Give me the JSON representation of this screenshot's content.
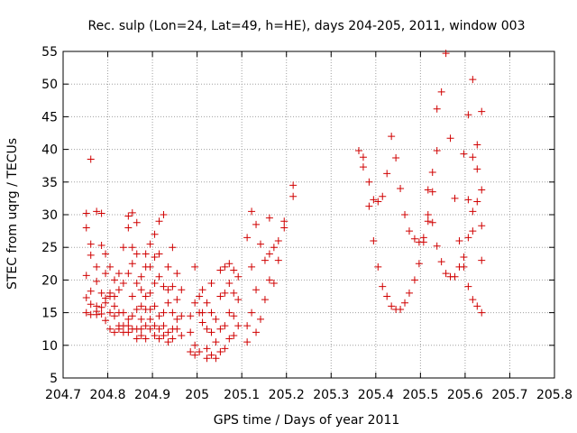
{
  "chart_data": {
    "type": "scatter",
    "title": "Rec. sulp (Lon=24, Lat=49, h=HE), days 204-205, 2011, window 003",
    "xlabel": "GPS time / Days of year 2011",
    "ylabel": "STEC from uqrg / TECUs",
    "xlim": [
      204.7,
      205.8
    ],
    "ylim": [
      5,
      55
    ],
    "xticks": [
      204.7,
      204.8,
      204.9,
      205.0,
      205.1,
      205.2,
      205.3,
      205.4,
      205.5,
      205.6,
      205.7,
      205.8
    ],
    "xtick_labels": [
      "204.7",
      "204.8",
      "204.9",
      "205",
      "205.1",
      "205.2",
      "205.3",
      "205.4",
      "205.5",
      "205.6",
      "205.7",
      "205.8"
    ],
    "yticks": [
      5,
      10,
      15,
      20,
      25,
      30,
      35,
      40,
      45,
      50,
      55
    ],
    "ytick_labels": [
      "5",
      "10",
      "15",
      "20",
      "25",
      "30",
      "35",
      "40",
      "45",
      "50",
      "55"
    ],
    "grid": true,
    "marker": "+",
    "colors": {
      "points": "#d00000",
      "grid": "#a0a0a0",
      "axes": "#000000"
    },
    "series": [
      {
        "points": [
          [
            204.752,
            30.2
          ],
          [
            204.752,
            28.0
          ],
          [
            204.752,
            20.7
          ],
          [
            204.752,
            17.3
          ],
          [
            204.752,
            15.0
          ],
          [
            204.762,
            38.5
          ],
          [
            204.762,
            25.5
          ],
          [
            204.762,
            23.8
          ],
          [
            204.762,
            18.3
          ],
          [
            204.762,
            16.3
          ],
          [
            204.762,
            14.7
          ],
          [
            204.775,
            30.5
          ],
          [
            204.775,
            22.0
          ],
          [
            204.775,
            19.8
          ],
          [
            204.775,
            16.0
          ],
          [
            204.775,
            15.2
          ],
          [
            204.775,
            14.7
          ],
          [
            204.786,
            30.2
          ],
          [
            204.786,
            25.3
          ],
          [
            204.786,
            18.0
          ],
          [
            204.786,
            15.8
          ],
          [
            204.786,
            14.8
          ],
          [
            204.795,
            24.0
          ],
          [
            204.795,
            21.0
          ],
          [
            204.795,
            17.2
          ],
          [
            204.795,
            16.5
          ],
          [
            204.795,
            13.8
          ],
          [
            204.805,
            22.0
          ],
          [
            204.805,
            18.0
          ],
          [
            204.805,
            17.5
          ],
          [
            204.805,
            15.0
          ],
          [
            204.805,
            12.5
          ],
          [
            204.815,
            20.0
          ],
          [
            204.815,
            17.5
          ],
          [
            204.815,
            16.0
          ],
          [
            204.815,
            14.5
          ],
          [
            204.815,
            12.0
          ],
          [
            204.825,
            21.0
          ],
          [
            204.825,
            18.5
          ],
          [
            204.825,
            15.0
          ],
          [
            204.825,
            13.0
          ],
          [
            204.825,
            12.5
          ],
          [
            204.835,
            25.0
          ],
          [
            204.835,
            19.5
          ],
          [
            204.835,
            15.0
          ],
          [
            204.835,
            13.0
          ],
          [
            204.835,
            12.0
          ],
          [
            204.846,
            29.8
          ],
          [
            204.846,
            28.0
          ],
          [
            204.846,
            21.0
          ],
          [
            204.846,
            14.0
          ],
          [
            204.846,
            13.0
          ],
          [
            204.846,
            12.0
          ],
          [
            204.855,
            30.3
          ],
          [
            204.855,
            25.0
          ],
          [
            204.855,
            22.5
          ],
          [
            204.855,
            17.5
          ],
          [
            204.855,
            14.5
          ],
          [
            204.855,
            12.5
          ],
          [
            204.865,
            28.8
          ],
          [
            204.865,
            24.0
          ],
          [
            204.865,
            19.5
          ],
          [
            204.865,
            15.5
          ],
          [
            204.865,
            12.5
          ],
          [
            204.865,
            11.0
          ],
          [
            204.875,
            20.5
          ],
          [
            204.875,
            18.5
          ],
          [
            204.875,
            16.0
          ],
          [
            204.875,
            14.0
          ],
          [
            204.875,
            12.5
          ],
          [
            204.875,
            11.5
          ],
          [
            204.885,
            24.0
          ],
          [
            204.885,
            22.0
          ],
          [
            204.885,
            17.5
          ],
          [
            204.885,
            15.5
          ],
          [
            204.885,
            13.0
          ],
          [
            204.885,
            11.0
          ],
          [
            204.895,
            25.5
          ],
          [
            204.895,
            22.0
          ],
          [
            204.895,
            18.0
          ],
          [
            204.895,
            15.5
          ],
          [
            204.895,
            14.0
          ],
          [
            204.895,
            12.5
          ],
          [
            204.905,
            27.0
          ],
          [
            204.905,
            23.5
          ],
          [
            204.905,
            19.5
          ],
          [
            204.905,
            16.0
          ],
          [
            204.905,
            13.0
          ],
          [
            204.905,
            11.5
          ],
          [
            204.915,
            29.0
          ],
          [
            204.915,
            24.0
          ],
          [
            204.915,
            20.5
          ],
          [
            204.915,
            14.5
          ],
          [
            204.915,
            12.5
          ],
          [
            204.915,
            11.0
          ],
          [
            204.925,
            30.0
          ],
          [
            204.925,
            19.0
          ],
          [
            204.925,
            15.0
          ],
          [
            204.925,
            13.0
          ],
          [
            204.925,
            11.5
          ],
          [
            204.935,
            22.0
          ],
          [
            204.935,
            18.5
          ],
          [
            204.935,
            16.5
          ],
          [
            204.935,
            12.0
          ],
          [
            204.935,
            10.5
          ],
          [
            204.945,
            25.0
          ],
          [
            204.945,
            19.0
          ],
          [
            204.945,
            15.0
          ],
          [
            204.945,
            12.5
          ],
          [
            204.945,
            11.0
          ],
          [
            204.955,
            21.0
          ],
          [
            204.955,
            17.0
          ],
          [
            204.955,
            14.0
          ],
          [
            204.955,
            12.5
          ],
          [
            204.965,
            18.5
          ],
          [
            204.965,
            14.5
          ],
          [
            204.965,
            11.5
          ],
          [
            204.985,
            14.5
          ],
          [
            204.985,
            12.0
          ],
          [
            204.985,
            9.0
          ],
          [
            204.995,
            22.0
          ],
          [
            204.995,
            16.5
          ],
          [
            204.995,
            10.0
          ],
          [
            204.995,
            8.5
          ],
          [
            205.005,
            17.5
          ],
          [
            205.005,
            15.0
          ],
          [
            205.005,
            9.0
          ],
          [
            205.012,
            18.5
          ],
          [
            205.012,
            15.0
          ],
          [
            205.012,
            13.5
          ],
          [
            205.022,
            16.5
          ],
          [
            205.022,
            12.5
          ],
          [
            205.022,
            9.5
          ],
          [
            205.022,
            8.0
          ],
          [
            205.032,
            19.5
          ],
          [
            205.032,
            15.0
          ],
          [
            205.032,
            12.0
          ],
          [
            205.032,
            8.5
          ],
          [
            205.042,
            14.0
          ],
          [
            205.042,
            10.5
          ],
          [
            205.042,
            8.0
          ],
          [
            205.052,
            21.5
          ],
          [
            205.052,
            17.5
          ],
          [
            205.052,
            12.5
          ],
          [
            205.052,
            9.0
          ],
          [
            205.062,
            22.0
          ],
          [
            205.062,
            18.0
          ],
          [
            205.062,
            13.0
          ],
          [
            205.062,
            9.5
          ],
          [
            205.072,
            22.5
          ],
          [
            205.072,
            19.5
          ],
          [
            205.072,
            15.0
          ],
          [
            205.072,
            11.0
          ],
          [
            205.082,
            21.5
          ],
          [
            205.082,
            18.0
          ],
          [
            205.082,
            14.5
          ],
          [
            205.082,
            11.5
          ],
          [
            205.092,
            20.5
          ],
          [
            205.092,
            17.0
          ],
          [
            205.092,
            13.0
          ],
          [
            205.112,
            26.5
          ],
          [
            205.112,
            13.0
          ],
          [
            205.112,
            10.5
          ],
          [
            205.122,
            30.5
          ],
          [
            205.122,
            22.0
          ],
          [
            205.122,
            15.0
          ],
          [
            205.132,
            28.5
          ],
          [
            205.132,
            18.5
          ],
          [
            205.132,
            12.0
          ],
          [
            205.142,
            25.5
          ],
          [
            205.142,
            14.0
          ],
          [
            205.152,
            23.0
          ],
          [
            205.152,
            17.0
          ],
          [
            205.162,
            29.5
          ],
          [
            205.162,
            24.0
          ],
          [
            205.162,
            20.0
          ],
          [
            205.172,
            25.0
          ],
          [
            205.172,
            19.5
          ],
          [
            205.182,
            26.0
          ],
          [
            205.182,
            23.0
          ],
          [
            205.195,
            29.0
          ],
          [
            205.195,
            28.0
          ],
          [
            205.215,
            34.5
          ],
          [
            205.215,
            32.8
          ],
          [
            205.362,
            39.8
          ],
          [
            205.372,
            38.8
          ],
          [
            205.372,
            37.3
          ],
          [
            205.385,
            35.0
          ],
          [
            205.385,
            31.3
          ],
          [
            205.395,
            32.3
          ],
          [
            205.395,
            26.0
          ],
          [
            205.405,
            32.0
          ],
          [
            205.405,
            22.0
          ],
          [
            205.415,
            32.8
          ],
          [
            205.415,
            19.0
          ],
          [
            205.425,
            36.3
          ],
          [
            205.425,
            17.5
          ],
          [
            205.435,
            42.0
          ],
          [
            205.435,
            16.0
          ],
          [
            205.445,
            38.7
          ],
          [
            205.445,
            15.5
          ],
          [
            205.455,
            34.0
          ],
          [
            205.455,
            15.5
          ],
          [
            205.465,
            30.0
          ],
          [
            205.465,
            16.5
          ],
          [
            205.475,
            27.5
          ],
          [
            205.475,
            18.0
          ],
          [
            205.487,
            26.3
          ],
          [
            205.487,
            20.0
          ],
          [
            205.497,
            25.8
          ],
          [
            205.497,
            22.5
          ],
          [
            205.507,
            26.5
          ],
          [
            205.507,
            25.8
          ],
          [
            205.517,
            33.8
          ],
          [
            205.517,
            30.0
          ],
          [
            205.517,
            29.0
          ],
          [
            205.527,
            36.5
          ],
          [
            205.527,
            33.5
          ],
          [
            205.527,
            28.8
          ],
          [
            205.537,
            46.2
          ],
          [
            205.537,
            39.8
          ],
          [
            205.537,
            25.2
          ],
          [
            205.547,
            48.8
          ],
          [
            205.547,
            22.8
          ],
          [
            205.557,
            54.7
          ],
          [
            205.557,
            21.0
          ],
          [
            205.567,
            41.7
          ],
          [
            205.567,
            20.5
          ],
          [
            205.577,
            32.5
          ],
          [
            205.577,
            20.5
          ],
          [
            205.587,
            26.0
          ],
          [
            205.587,
            22.0
          ],
          [
            205.597,
            39.3
          ],
          [
            205.597,
            23.5
          ],
          [
            205.597,
            22.0
          ],
          [
            205.607,
            45.3
          ],
          [
            205.607,
            32.3
          ],
          [
            205.607,
            26.5
          ],
          [
            205.607,
            19.0
          ],
          [
            205.617,
            50.7
          ],
          [
            205.617,
            38.8
          ],
          [
            205.617,
            30.5
          ],
          [
            205.617,
            27.5
          ],
          [
            205.617,
            17.0
          ],
          [
            205.627,
            40.7
          ],
          [
            205.627,
            37.0
          ],
          [
            205.627,
            32.0
          ],
          [
            205.627,
            16.0
          ],
          [
            205.637,
            45.8
          ],
          [
            205.637,
            33.8
          ],
          [
            205.637,
            28.3
          ],
          [
            205.637,
            23.0
          ],
          [
            205.637,
            15.0
          ]
        ]
      }
    ]
  }
}
